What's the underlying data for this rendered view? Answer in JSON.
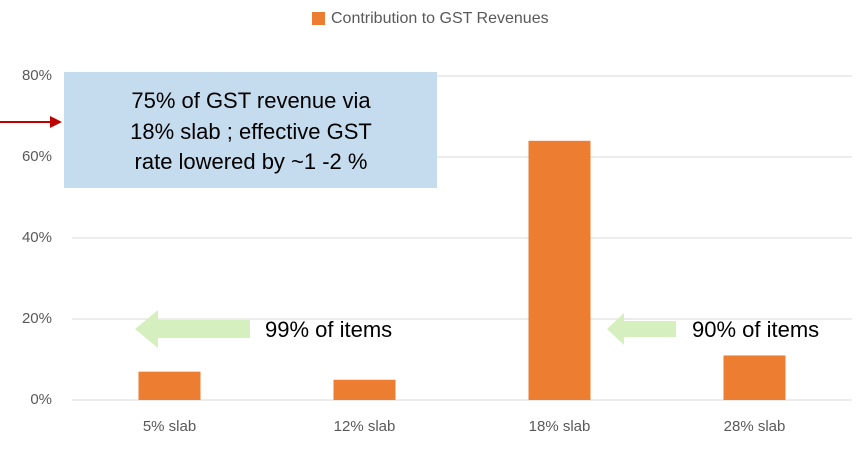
{
  "chart_data": {
    "type": "bar",
    "categories": [
      "5% slab",
      "12% slab",
      "18% slab",
      "28% slab"
    ],
    "series": [
      {
        "name": "Contribution to GST Revenues",
        "color": "#ed7d31",
        "values": [
          7,
          5,
          64,
          11
        ]
      }
    ],
    "ylim": [
      0,
      80
    ],
    "yticks": [
      {
        "value": 0,
        "label": "0%"
      },
      {
        "value": 20,
        "label": "20%"
      },
      {
        "value": 40,
        "label": "40%"
      },
      {
        "value": 60,
        "label": "60%"
      },
      {
        "value": 80,
        "label": "80%"
      }
    ],
    "grid": true,
    "legend": "top",
    "annotations": {
      "box": [
        "75% of GST revenue via",
        "18% slab ; effective GST",
        "rate lowered by ~1 -2 %"
      ],
      "left_arrow": "99% of items",
      "right_arrow": "90% of items"
    }
  }
}
